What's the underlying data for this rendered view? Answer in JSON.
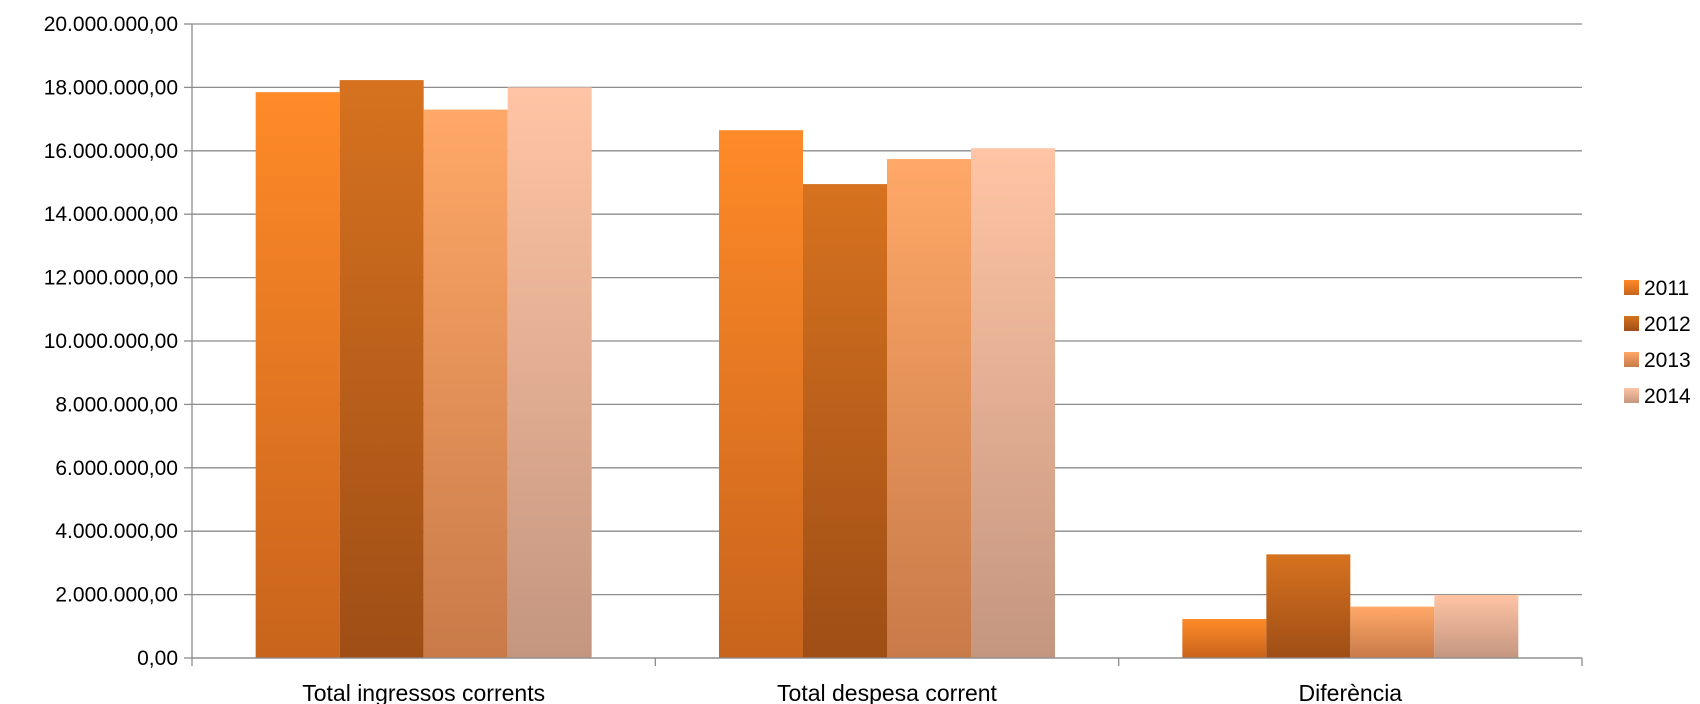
{
  "chart_data": {
    "type": "bar",
    "title": "",
    "xlabel": "",
    "ylabel": "",
    "categories": [
      "Total ingressos corrents",
      "Total despesa corrent",
      "Diferència"
    ],
    "series": [
      {
        "name": "2011",
        "values": [
          17850000,
          16650000,
          1230000
        ]
      },
      {
        "name": "2012",
        "values": [
          18230000,
          14950000,
          3270000
        ]
      },
      {
        "name": "2013",
        "values": [
          17300000,
          15740000,
          1620000
        ]
      },
      {
        "name": "2014",
        "values": [
          18000000,
          16080000,
          1990000
        ]
      }
    ],
    "ylim": [
      0,
      20000000
    ],
    "yticks": [
      "0,00",
      "2.000.000,00",
      "4.000.000,00",
      "6.000.000,00",
      "8.000.000,00",
      "10.000.000,00",
      "12.000.000,00",
      "14.000.000,00",
      "16.000.000,00",
      "18.000.000,00",
      "20.000.000,00"
    ],
    "grid": true,
    "legend_position": "right",
    "colors": {
      "2011": [
        "#ff8a28",
        "#c8641c"
      ],
      "2012": [
        "#d6721f",
        "#9f4e16"
      ],
      "2013": [
        "#ffa868",
        "#c87a48"
      ],
      "2014": [
        "#ffc4a4",
        "#c49680"
      ]
    }
  }
}
